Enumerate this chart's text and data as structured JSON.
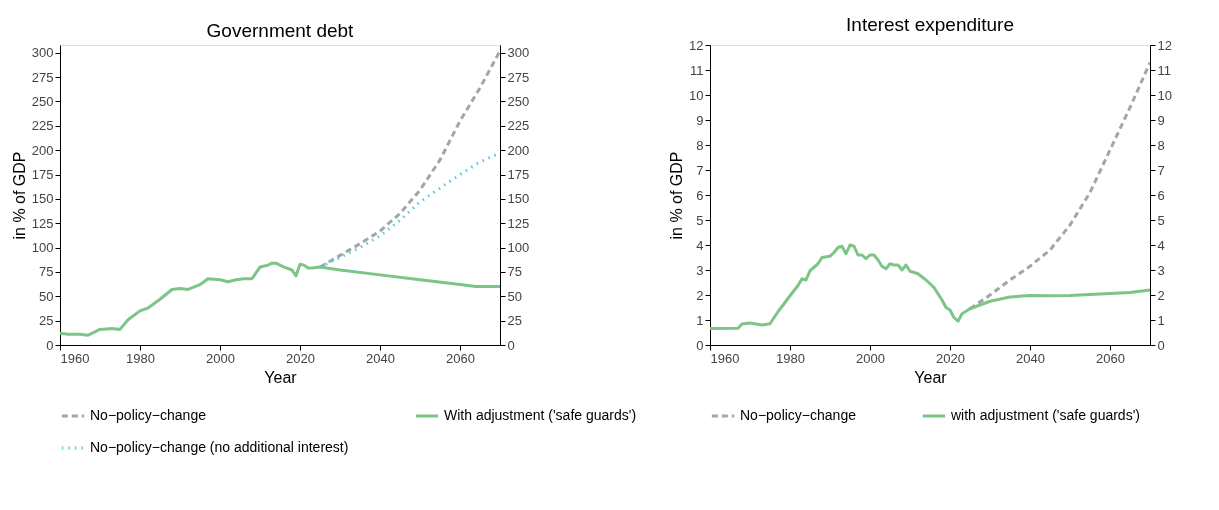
{
  "chart_data": [
    {
      "type": "line",
      "title": "Government debt",
      "xlabel": "Year",
      "ylabel": "in % of GDP",
      "xlim": [
        1960,
        2070
      ],
      "xticks": [
        1960,
        1980,
        2000,
        2020,
        2040,
        2060
      ],
      "ylim": [
        0,
        308
      ],
      "yticks": [
        0,
        25,
        50,
        75,
        100,
        125,
        150,
        175,
        200,
        225,
        250,
        275,
        300
      ],
      "y2lim": [
        0,
        308
      ],
      "y2ticks": [
        0,
        25,
        50,
        75,
        100,
        125,
        150,
        175,
        200,
        225,
        250,
        275,
        300
      ],
      "grid": false,
      "legend": "bottom",
      "marker": "none",
      "series": [
        {
          "name": "No−policy−change",
          "color": "#a3a6a5",
          "line_style": "dashed",
          "x": [
            2025,
            2030,
            2035,
            2040,
            2045,
            2050,
            2055,
            2060,
            2065,
            2070
          ],
          "values": [
            80,
            92,
            104,
            117,
            135,
            159,
            190,
            230,
            264,
            302
          ]
        },
        {
          "name": "With adjustment ('safe guards')",
          "color": "#7dc587",
          "line_style": "solid",
          "x": [
            1960,
            1962,
            1965,
            1967,
            1970,
            1973,
            1975,
            1977,
            1980,
            1982,
            1985,
            1988,
            1990,
            1992,
            1995,
            1997,
            2000,
            2002,
            2004,
            2006,
            2008,
            2009,
            2010,
            2012,
            2013,
            2014,
            2016,
            2018,
            2019,
            2020,
            2021,
            2022,
            2023,
            2025,
            2030,
            2040,
            2050,
            2060,
            2064,
            2070
          ],
          "values": [
            12,
            11,
            11,
            10,
            16,
            17,
            16,
            26,
            35,
            38,
            47,
            57,
            58,
            57,
            62,
            68,
            67,
            65,
            67,
            68,
            68,
            74,
            80,
            82,
            84,
            84,
            80,
            77,
            71,
            83,
            82,
            79,
            79,
            80,
            77,
            72,
            67,
            62,
            60,
            60
          ]
        },
        {
          "name": "No−policy−change (no additional interest)",
          "color": "#5bc8e0",
          "line_style": "dotted",
          "x": [
            2025,
            2030,
            2035,
            2040,
            2045,
            2050,
            2055,
            2060,
            2065,
            2070
          ],
          "values": [
            80,
            90,
            100,
            112,
            128,
            147,
            161,
            175,
            188,
            197
          ]
        }
      ]
    },
    {
      "type": "line",
      "title": "Interest expenditure",
      "xlabel": "Year",
      "ylabel": "in % of GDP",
      "xlim": [
        1960,
        2070
      ],
      "xticks": [
        1960,
        1980,
        2000,
        2020,
        2040,
        2060
      ],
      "ylim": [
        0,
        12
      ],
      "yticks": [
        0,
        1,
        2,
        3,
        4,
        5,
        6,
        7,
        8,
        9,
        10,
        11,
        12
      ],
      "y2lim": [
        0,
        12
      ],
      "y2ticks": [
        0,
        1,
        2,
        3,
        4,
        5,
        6,
        7,
        8,
        9,
        10,
        11,
        12
      ],
      "grid": false,
      "legend": "bottom",
      "marker": "none",
      "series": [
        {
          "name": "No−policy−change",
          "color": "#a3a6a5",
          "line_style": "dashed",
          "x": [
            2025,
            2030,
            2035,
            2040,
            2045,
            2050,
            2055,
            2060,
            2065,
            2070
          ],
          "values": [
            1.45,
            2.0,
            2.6,
            3.15,
            3.8,
            4.8,
            6.1,
            7.8,
            9.5,
            11.3
          ]
        },
        {
          "name": "with adjustment ('safe guards')",
          "color": "#7dc587",
          "line_style": "solid",
          "x": [
            1960,
            1967,
            1968,
            1970,
            1973,
            1975,
            1977,
            1980,
            1982,
            1983,
            1984,
            1985,
            1987,
            1988,
            1990,
            1991,
            1992,
            1993,
            1994,
            1995,
            1996,
            1997,
            1998,
            1999,
            2000,
            2001,
            2002,
            2003,
            2004,
            2005,
            2006,
            2007,
            2008,
            2009,
            2010,
            2012,
            2014,
            2016,
            2018,
            2019,
            2020,
            2021,
            2022,
            2023,
            2025,
            2030,
            2035,
            2040,
            2045,
            2050,
            2055,
            2060,
            2065,
            2070
          ],
          "values": [
            0.66,
            0.67,
            0.84,
            0.88,
            0.8,
            0.85,
            1.33,
            1.97,
            2.38,
            2.65,
            2.6,
            2.97,
            3.25,
            3.5,
            3.55,
            3.7,
            3.9,
            3.95,
            3.65,
            4.0,
            3.95,
            3.6,
            3.6,
            3.45,
            3.6,
            3.6,
            3.4,
            3.15,
            3.05,
            3.25,
            3.2,
            3.2,
            3.0,
            3.2,
            2.95,
            2.85,
            2.6,
            2.3,
            1.8,
            1.5,
            1.4,
            1.1,
            0.95,
            1.25,
            1.45,
            1.75,
            1.92,
            1.98,
            1.97,
            1.98,
            2.02,
            2.06,
            2.1,
            2.2
          ]
        }
      ]
    }
  ]
}
